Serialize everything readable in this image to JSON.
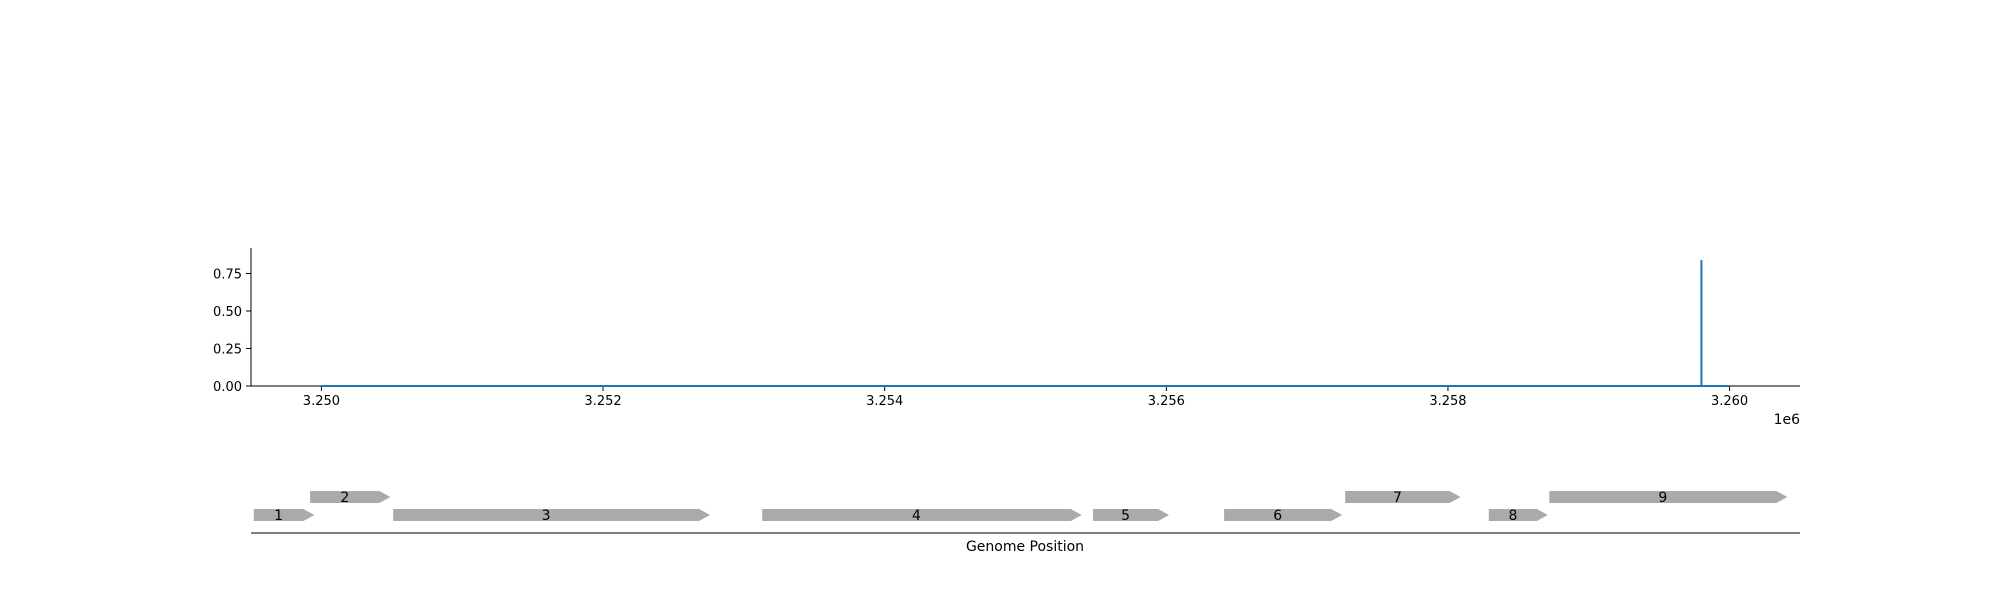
{
  "chart_data": [
    {
      "type": "line",
      "title": "",
      "xlabel": "",
      "ylabel": "",
      "x_offset_label": "1e6",
      "xlim": [
        3249500,
        3260500
      ],
      "ylim": [
        0,
        0.92
      ],
      "x_ticks": [
        3250000,
        3252000,
        3254000,
        3256000,
        3258000,
        3260000
      ],
      "x_tick_labels": [
        "3.250",
        "3.252",
        "3.254",
        "3.256",
        "3.258",
        "3.260"
      ],
      "y_ticks": [
        0.0,
        0.25,
        0.5,
        0.75
      ],
      "y_tick_labels": [
        "0.00",
        "0.25",
        "0.50",
        "0.75"
      ],
      "grid": false,
      "line_color": "#1f77b4",
      "series": [
        {
          "x": [
            3250000,
            3259800,
            3259800,
            3259800,
            3259800,
            3260000
          ],
          "y": [
            0,
            0,
            0,
            0.84,
            0,
            0
          ]
        }
      ]
    },
    {
      "type": "gene_map",
      "xlabel": "Genome Position",
      "xlim": [
        3249500,
        3260500
      ],
      "gene_color": "#aaaaaa",
      "genes": [
        {
          "label": "1",
          "start": 3249520,
          "end": 3249950,
          "strand": "+",
          "row": 0
        },
        {
          "label": "2",
          "start": 3249920,
          "end": 3250490,
          "strand": "+",
          "row": 1
        },
        {
          "label": "3",
          "start": 3250510,
          "end": 3252760,
          "strand": "+",
          "row": 0
        },
        {
          "label": "4",
          "start": 3253130,
          "end": 3255400,
          "strand": "+",
          "row": 0
        },
        {
          "label": "5",
          "start": 3255480,
          "end": 3256020,
          "strand": "+",
          "row": 0
        },
        {
          "label": "6",
          "start": 3256410,
          "end": 3257250,
          "strand": "+",
          "row": 0
        },
        {
          "label": "7",
          "start": 3257270,
          "end": 3258090,
          "strand": "+",
          "row": 1
        },
        {
          "label": "8",
          "start": 3258290,
          "end": 3258710,
          "strand": "+",
          "row": 0
        },
        {
          "label": "9",
          "start": 3258720,
          "end": 3260410,
          "strand": "+",
          "row": 1
        }
      ]
    }
  ]
}
